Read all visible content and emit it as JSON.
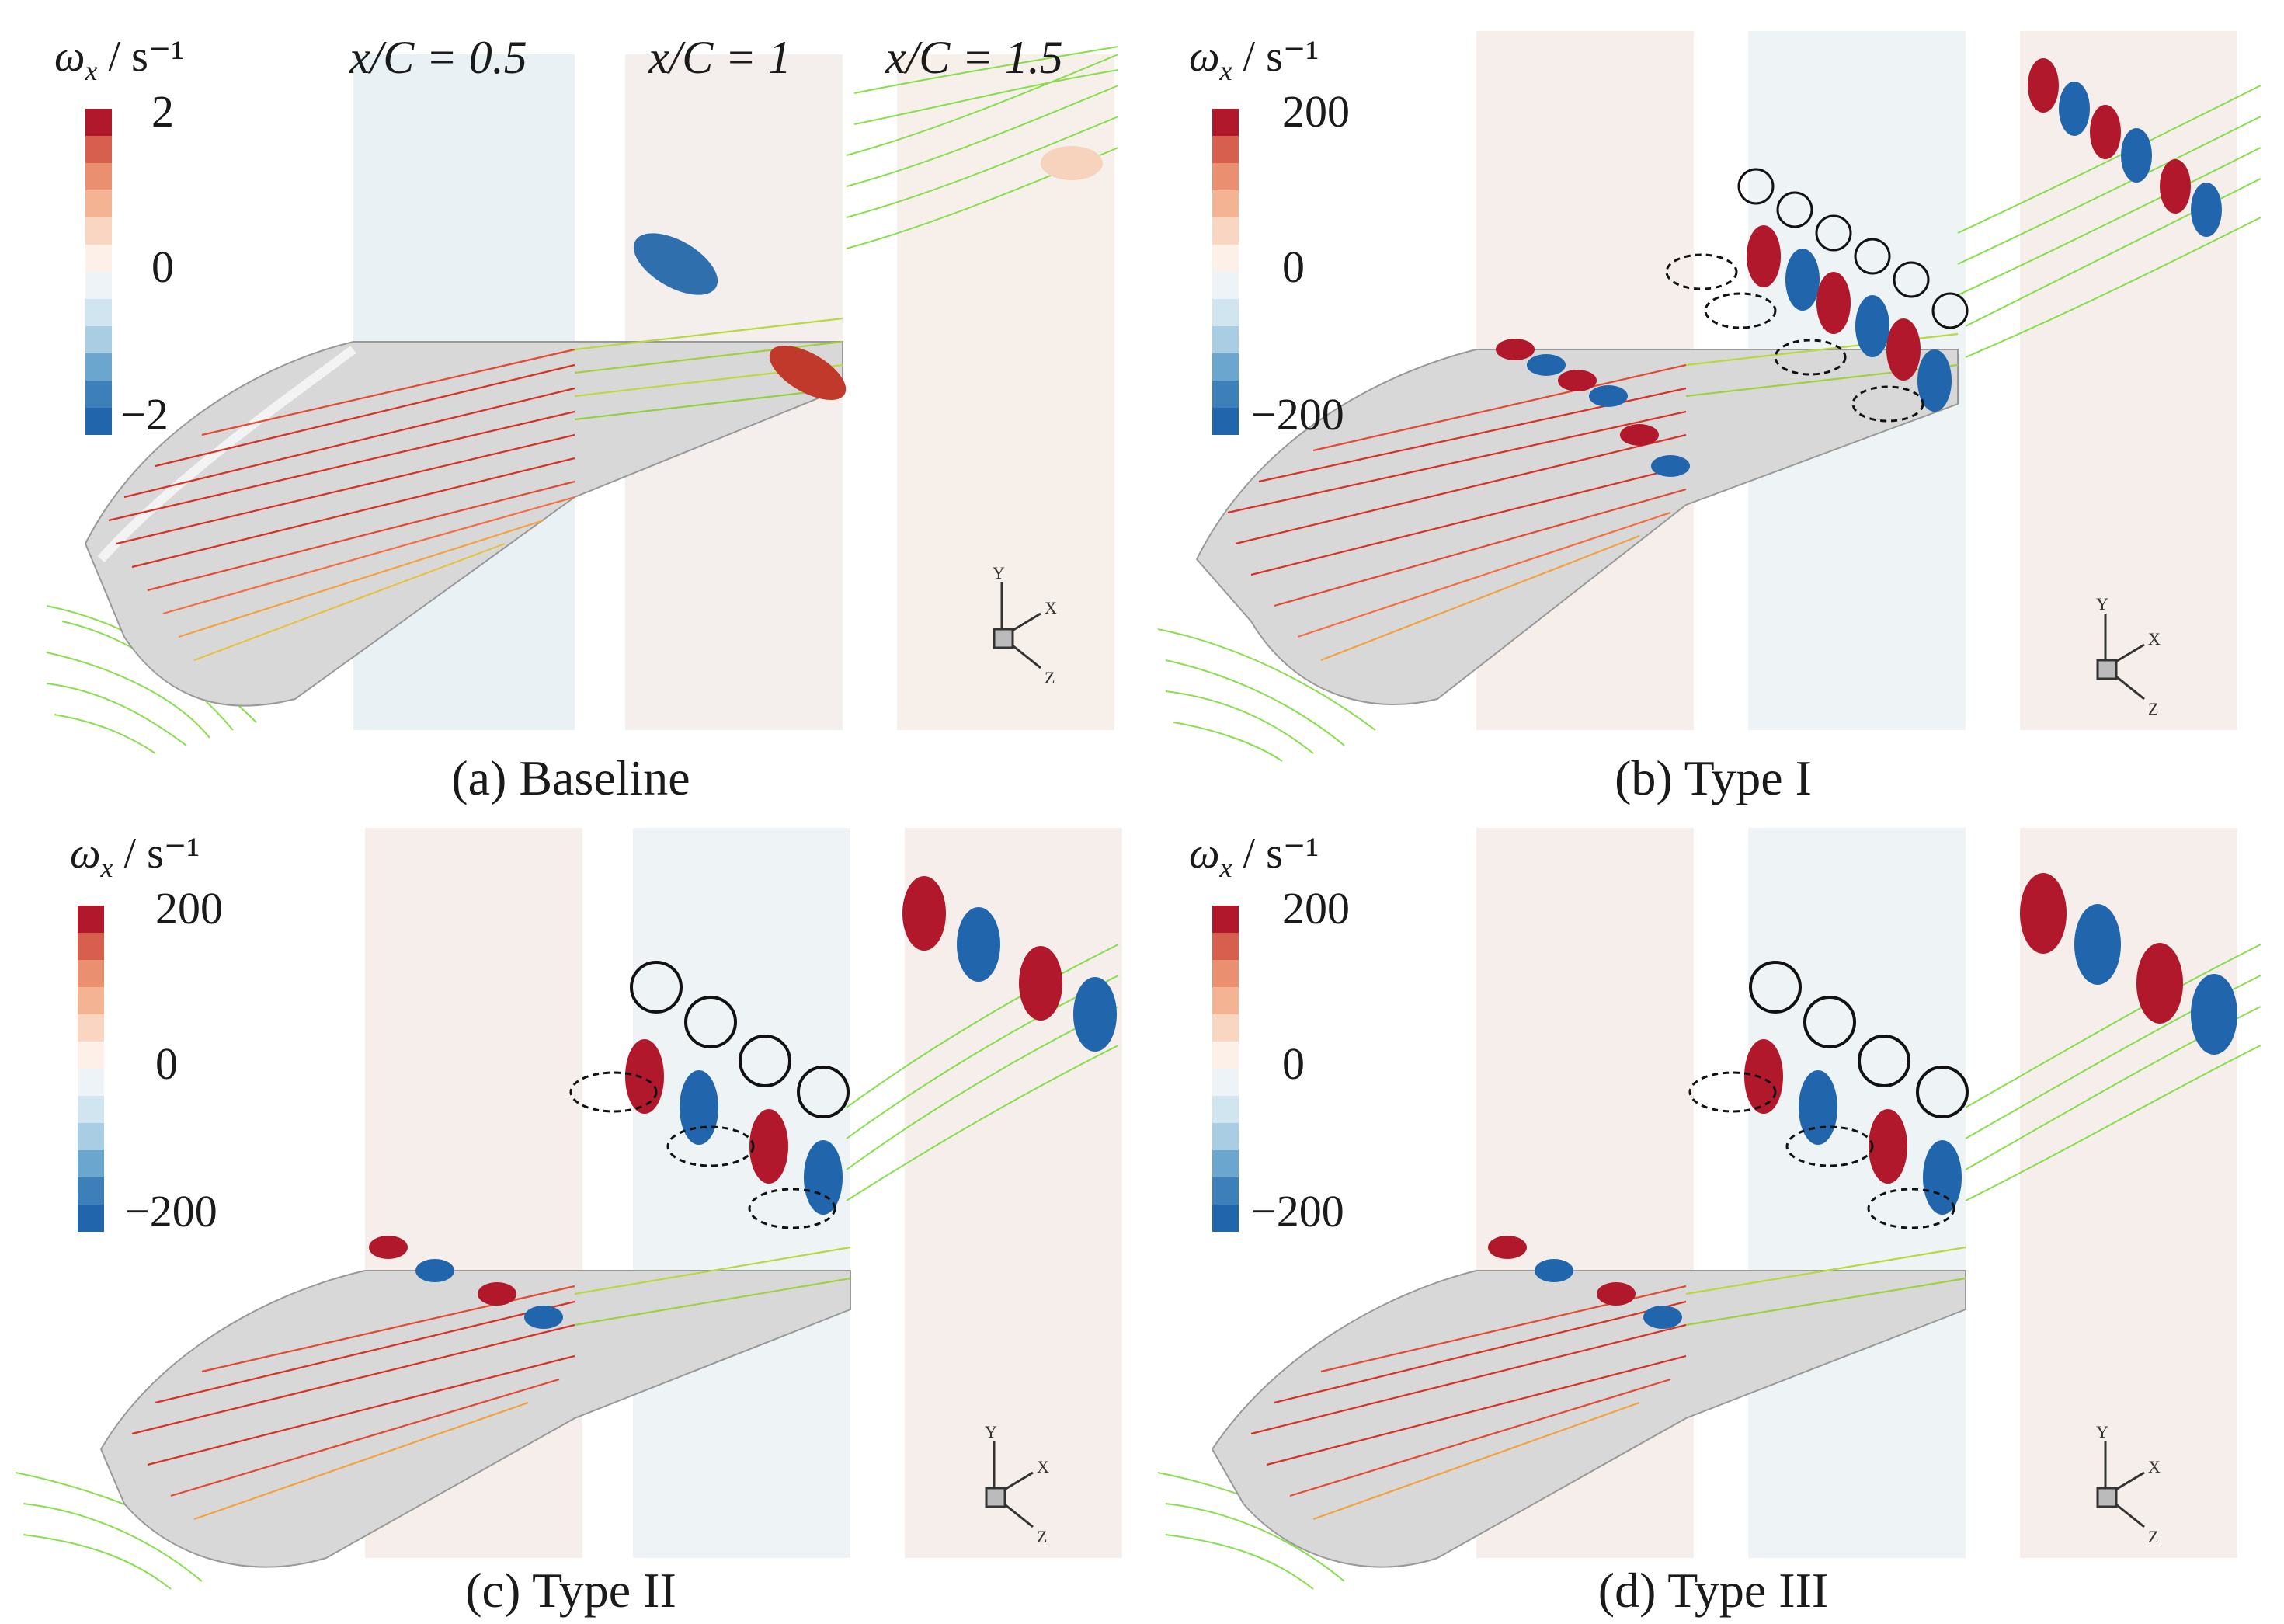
{
  "panels": [
    {
      "id": "a",
      "label": "(a) Baseline",
      "cb_max": "2",
      "cb_mid": "0",
      "cb_min": "−2"
    },
    {
      "id": "b",
      "label": "(b) Type I",
      "cb_max": "200",
      "cb_mid": "0",
      "cb_min": "−200"
    },
    {
      "id": "c",
      "label": "(c) Type II",
      "cb_max": "200",
      "cb_mid": "0",
      "cb_min": "−200"
    },
    {
      "id": "d",
      "label": "(d) Type III",
      "cb_max": "200",
      "cb_mid": "0",
      "cb_min": "−200"
    }
  ],
  "colorbar": {
    "symbol": "ω",
    "subscript": "x",
    "unit": " / s⁻¹",
    "colors": [
      "#b2182b",
      "#d6604d",
      "#ea8f6f",
      "#f4b393",
      "#f9d6c2",
      "#fdf0e8",
      "#eef3f7",
      "#d1e5f0",
      "#a9cde3",
      "#6aa6cd",
      "#3d7fb8",
      "#2166ac"
    ]
  },
  "stations": {
    "s1": "x/C = 0.5",
    "s2": "x/C = 1",
    "s3": "x/C = 1.5"
  },
  "axes": {
    "x": "X",
    "y": "Y",
    "z": "Z"
  }
}
